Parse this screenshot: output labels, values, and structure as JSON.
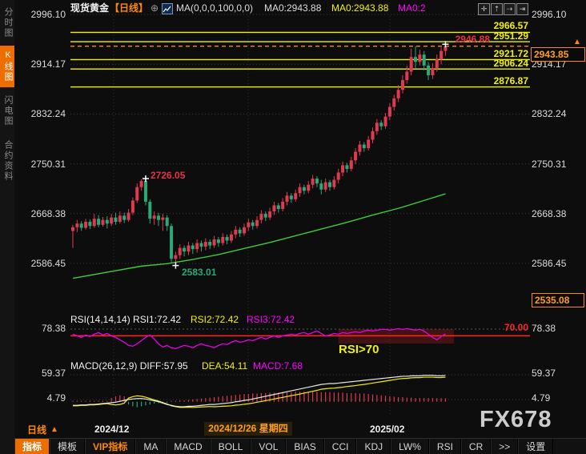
{
  "header": {
    "symbol": "现货黄金",
    "period_tag": "【日线】",
    "plus_icon": "⊕",
    "ma_settings": "MA(0,0,0,100,0,0)",
    "ma0_white": "MA0:2943.88",
    "ma0_yellow": "MA0:2943.88",
    "ma0_magenta": "MA0:2"
  },
  "sidebar": {
    "items": [
      {
        "label": "分时图",
        "active": false
      },
      {
        "label": "K线图",
        "active": true
      },
      {
        "label": "闪电图",
        "active": false
      },
      {
        "label": "合约资料",
        "active": false
      }
    ]
  },
  "tool_icons": [
    {
      "name": "pan-icon",
      "glyph": "✛"
    },
    {
      "name": "axis-zoom-vertical-icon",
      "glyph": "⇡"
    },
    {
      "name": "axis-zoom-horizontal-icon",
      "glyph": "⇢"
    },
    {
      "name": "pane-expand-icon",
      "glyph": "⇥"
    }
  ],
  "axis": {
    "main_left": [
      "2996.10",
      "2914.17",
      "2832.24",
      "2750.31",
      "2668.38",
      "2586.45"
    ],
    "main_right": [
      "2996.10",
      "2914.17",
      "2832.24",
      "2750.31",
      "2668.38",
      "2586.45"
    ],
    "rsi_tick": "78.38",
    "macd_tick_top": "59.37",
    "macd_tick_bottom": "4.79",
    "low_box": "2535.08",
    "price_box": "2943.85",
    "axis_arrow": "▲"
  },
  "levels": {
    "items": [
      {
        "label": "2966.57"
      },
      {
        "label": "2951.29"
      },
      {
        "label": "2921.72"
      },
      {
        "label": "2906.24"
      },
      {
        "label": "2876.87"
      }
    ],
    "high_label": "2946.88"
  },
  "annotations": {
    "peak": "2726.05",
    "trough": "2583.01",
    "rsi_note": "RSI>70",
    "rsi_70": "70.00"
  },
  "rsi_header": {
    "title": "RSI(14,14,14) RSI1:72.42",
    "rsi2": "RSI2:72.42",
    "rsi3": "RSI3:72.42"
  },
  "macd_header": {
    "title": "MACD(26,12,9) DIFF:57.95",
    "dea": "DEA:54.11",
    "macd": "MACD:7.68"
  },
  "footer": {
    "period": "日线",
    "period_arrow": "▲",
    "date1": "2024/12",
    "date_highlight": "2024/12/26 星期四",
    "date2": "2025/02",
    "watermark": "FX678"
  },
  "toolbar": {
    "items": [
      "指标",
      "模板",
      "VIP指标",
      "MA",
      "MACD",
      "BOLL",
      "VOL",
      "BIAS",
      "CCI",
      "KDJ",
      "LW%",
      "RSI",
      "CR",
      ">>",
      "设置"
    ]
  },
  "colors": {
    "up": "#df3a50",
    "down": "#2ba878",
    "ma100": "#3fc93f",
    "rsi_line": "#e600e6",
    "level_line": "#f2f200",
    "current_line": "#ff8a00",
    "red_line": "#ff2626",
    "diff_line": "#e8e8e8",
    "dea_line": "#f2f200",
    "grid": "#3c3c3c",
    "cross": "#ffffff",
    "rsi_zone_fill": "rgba(170,30,30,0.35)"
  },
  "chart_data": {
    "type": "candlestick+indicators",
    "title": "现货黄金 日线",
    "y_axis_ticks": [
      2996.1,
      2914.17,
      2832.24,
      2750.31,
      2668.38,
      2586.45
    ],
    "ylim_main": [
      2535.08,
      2996.1
    ],
    "level_lines": [
      2966.57,
      2951.29,
      2921.72,
      2906.24,
      2876.87
    ],
    "current_price": 2943.85,
    "high_marker": 2946.88,
    "peak": 2726.05,
    "trough": 2583.01,
    "rsi_values_shown": {
      "rsi1": 72.42,
      "rsi2": 72.42,
      "rsi3": 72.42,
      "overbought": 70,
      "axis": 78.38
    },
    "macd_values_shown": {
      "diff": 57.95,
      "dea": 54.11,
      "macd": 7.68,
      "axis_top": 59.37,
      "axis_bottom": 4.79
    },
    "x_months": [
      "2024/12",
      "2025/02"
    ],
    "candles": [
      [
        2640,
        2646,
        2612,
        2650
      ],
      [
        2646,
        2652,
        2638,
        2658
      ],
      [
        2652,
        2645,
        2640,
        2656
      ],
      [
        2645,
        2655,
        2642,
        2660
      ],
      [
        2655,
        2648,
        2643,
        2659
      ],
      [
        2648,
        2660,
        2645,
        2668
      ],
      [
        2660,
        2650,
        2646,
        2666
      ],
      [
        2650,
        2658,
        2647,
        2663
      ],
      [
        2658,
        2652,
        2644,
        2664
      ],
      [
        2652,
        2662,
        2648,
        2668
      ],
      [
        2662,
        2655,
        2650,
        2670
      ],
      [
        2655,
        2665,
        2652,
        2672
      ],
      [
        2665,
        2658,
        2653,
        2670
      ],
      [
        2658,
        2670,
        2655,
        2676
      ],
      [
        2670,
        2690,
        2666,
        2695
      ],
      [
        2690,
        2712,
        2686,
        2718
      ],
      [
        2712,
        2722,
        2706,
        2725
      ],
      [
        2722,
        2688,
        2682,
        2726.05
      ],
      [
        2688,
        2660,
        2652,
        2692
      ],
      [
        2660,
        2665,
        2650,
        2672
      ],
      [
        2665,
        2658,
        2648,
        2670
      ],
      [
        2658,
        2662,
        2640,
        2668
      ],
      [
        2662,
        2648,
        2640,
        2666
      ],
      [
        2648,
        2594,
        2588,
        2652
      ],
      [
        2594,
        2600,
        2583.01,
        2606
      ],
      [
        2600,
        2612,
        2594,
        2618
      ],
      [
        2612,
        2606,
        2598,
        2616
      ],
      [
        2606,
        2616,
        2600,
        2622
      ],
      [
        2616,
        2610,
        2602,
        2620
      ],
      [
        2610,
        2620,
        2604,
        2626
      ],
      [
        2620,
        2614,
        2606,
        2624
      ],
      [
        2614,
        2622,
        2608,
        2628
      ],
      [
        2622,
        2616,
        2610,
        2626
      ],
      [
        2616,
        2626,
        2612,
        2632
      ],
      [
        2626,
        2620,
        2614,
        2630
      ],
      [
        2620,
        2630,
        2616,
        2636
      ],
      [
        2630,
        2624,
        2618,
        2634
      ],
      [
        2624,
        2634,
        2620,
        2640
      ],
      [
        2634,
        2642,
        2628,
        2648
      ],
      [
        2642,
        2636,
        2630,
        2646
      ],
      [
        2636,
        2646,
        2632,
        2652
      ],
      [
        2646,
        2654,
        2640,
        2660
      ],
      [
        2654,
        2648,
        2642,
        2658
      ],
      [
        2648,
        2658,
        2644,
        2664
      ],
      [
        2658,
        2668,
        2652,
        2674
      ],
      [
        2668,
        2662,
        2656,
        2672
      ],
      [
        2662,
        2672,
        2658,
        2678
      ],
      [
        2672,
        2682,
        2666,
        2688
      ],
      [
        2682,
        2676,
        2670,
        2686
      ],
      [
        2676,
        2688,
        2672,
        2694
      ],
      [
        2688,
        2698,
        2682,
        2704
      ],
      [
        2698,
        2692,
        2686,
        2702
      ],
      [
        2692,
        2702,
        2688,
        2708
      ],
      [
        2702,
        2712,
        2696,
        2718
      ],
      [
        2712,
        2706,
        2700,
        2716
      ],
      [
        2706,
        2716,
        2702,
        2722
      ],
      [
        2716,
        2726,
        2710,
        2732
      ],
      [
        2726,
        2718,
        2712,
        2730
      ],
      [
        2718,
        2708,
        2700,
        2724
      ],
      [
        2708,
        2720,
        2704,
        2726
      ],
      [
        2720,
        2712,
        2706,
        2724
      ],
      [
        2712,
        2724,
        2708,
        2730
      ],
      [
        2724,
        2736,
        2718,
        2742
      ],
      [
        2736,
        2748,
        2730,
        2754
      ],
      [
        2748,
        2742,
        2736,
        2752
      ],
      [
        2742,
        2756,
        2738,
        2762
      ],
      [
        2756,
        2770,
        2750,
        2776
      ],
      [
        2770,
        2782,
        2764,
        2788
      ],
      [
        2782,
        2776,
        2770,
        2786
      ],
      [
        2776,
        2790,
        2772,
        2796
      ],
      [
        2790,
        2804,
        2784,
        2810
      ],
      [
        2804,
        2818,
        2798,
        2824
      ],
      [
        2818,
        2812,
        2806,
        2822
      ],
      [
        2812,
        2828,
        2808,
        2834
      ],
      [
        2828,
        2844,
        2822,
        2850
      ],
      [
        2844,
        2858,
        2838,
        2864
      ],
      [
        2858,
        2872,
        2852,
        2880
      ],
      [
        2872,
        2888,
        2866,
        2896
      ],
      [
        2888,
        2902,
        2882,
        2912
      ],
      [
        2902,
        2926,
        2896,
        2940
      ],
      [
        2926,
        2918,
        2908,
        2944
      ],
      [
        2918,
        2930,
        2912,
        2938
      ],
      [
        2930,
        2912,
        2904,
        2936
      ],
      [
        2912,
        2896,
        2888,
        2918
      ],
      [
        2896,
        2908,
        2890,
        2916
      ],
      [
        2908,
        2922,
        2902,
        2930
      ],
      [
        2922,
        2936,
        2914,
        2942
      ],
      [
        2936,
        2943.85,
        2928,
        2947
      ]
    ],
    "ma100": [
      [
        0,
        2562
      ],
      [
        8,
        2572
      ],
      [
        16,
        2582
      ],
      [
        22,
        2586
      ],
      [
        28,
        2593
      ],
      [
        34,
        2601
      ],
      [
        40,
        2611
      ],
      [
        46,
        2621
      ],
      [
        52,
        2632
      ],
      [
        58,
        2643
      ],
      [
        64,
        2654
      ],
      [
        70,
        2666
      ],
      [
        76,
        2677
      ],
      [
        82,
        2690
      ],
      [
        87,
        2701
      ]
    ],
    "rsi": [
      72,
      70,
      68,
      71,
      69,
      72,
      74,
      71,
      73,
      70,
      68,
      65,
      62,
      58,
      57,
      60,
      64,
      68,
      71,
      66,
      60,
      56,
      58,
      55,
      54,
      56,
      58,
      57,
      55,
      58,
      60,
      58,
      57,
      55,
      58,
      60,
      59,
      62,
      64,
      62,
      63,
      65,
      64,
      66,
      68,
      66,
      68,
      70,
      68,
      70,
      71,
      72,
      71,
      73,
      74,
      72,
      74,
      76,
      73,
      70,
      71,
      73,
      72,
      74,
      73,
      74,
      75,
      74,
      76,
      77,
      76,
      77,
      78,
      78,
      77,
      78,
      79,
      78,
      79,
      78,
      77,
      78,
      76,
      72,
      68,
      65,
      69,
      72.4
    ],
    "macd_diff": [
      -8,
      -8,
      -7,
      -7,
      -6,
      -6,
      -5,
      -4,
      -3,
      -2,
      -1,
      1,
      3,
      5,
      6,
      7,
      7,
      6,
      4,
      2,
      0,
      -3,
      -6,
      -8,
      -10,
      -11,
      -11,
      -10,
      -10,
      -9,
      -8,
      -7,
      -6,
      -6,
      -5,
      -4,
      -3,
      -2,
      0,
      1,
      3,
      4,
      6,
      8,
      10,
      12,
      14,
      16,
      18,
      20,
      22,
      24,
      26,
      28,
      30,
      32,
      34,
      36,
      38,
      39,
      40,
      40,
      41,
      42,
      43,
      44,
      45,
      46,
      47,
      48,
      49,
      50,
      51,
      52,
      53,
      54,
      55,
      56,
      56,
      57,
      57,
      57,
      58,
      58,
      58,
      57,
      57,
      57.95
    ],
    "macd_hist": [
      2,
      2,
      2,
      2,
      2,
      2,
      2,
      2,
      2,
      8,
      12,
      14,
      12,
      -6,
      -10,
      -12,
      -10,
      -8,
      -6,
      -4,
      -3,
      -2,
      -2,
      2,
      2,
      3,
      3,
      4,
      5,
      6,
      7,
      8,
      9,
      10,
      11,
      12,
      13,
      14,
      15,
      16,
      17,
      17,
      18,
      18,
      19,
      19,
      20,
      20,
      20,
      21,
      21,
      21,
      22,
      22,
      22,
      22,
      22,
      22,
      21,
      21,
      21,
      20,
      20,
      20,
      19,
      19,
      19,
      18,
      18,
      17,
      16,
      15,
      14,
      13,
      12,
      11,
      10,
      10,
      9,
      9,
      8,
      8,
      8,
      8,
      8,
      7.8,
      7.7,
      7.68
    ],
    "cross_markers": [
      {
        "i": 17,
        "price": 2726.05
      },
      {
        "i": 24,
        "price": 2583.01
      },
      {
        "i": 87,
        "price": 2947
      }
    ],
    "rsi_zone": {
      "i_start": 62,
      "i_end": 89
    }
  }
}
